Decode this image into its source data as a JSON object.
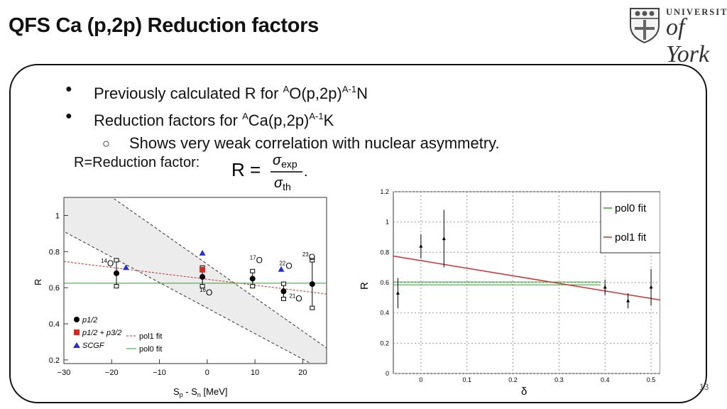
{
  "slide": {
    "title": "QFS Ca (p,2p) Reduction factors",
    "page_number": "13"
  },
  "logo": {
    "line1": "UNIVERSITY",
    "line2": "of York"
  },
  "bullets": [
    {
      "pre": "Previously calculated R for ",
      "sup1": "A",
      "mid": "O(p,2p)",
      "sup2": "A-1",
      "post": "N"
    },
    {
      "pre": "Reduction factors for ",
      "sup1": "A",
      "mid": "Ca(p,2p)",
      "sup2": "A-1",
      "post": "K"
    }
  ],
  "sub_bullet": "Shows very weak correlation with nuclear asymmetry.",
  "r_label": "R=Reduction factor:",
  "formula": {
    "lhs": "R =",
    "num": "σexp",
    "den": "σth"
  },
  "chart_data": [
    {
      "type": "scatter",
      "xlabel": "Sp - Sn [MeV]",
      "ylabel": "R",
      "xlim": [
        -30,
        25
      ],
      "ylim": [
        0.18,
        1.1
      ],
      "xticks": [
        "−30",
        "−20",
        "−10",
        "0",
        "10",
        "20"
      ],
      "yticks": [
        "0.2",
        "0.4",
        "0.6",
        "0.8",
        "1"
      ],
      "legend_left": [
        "p1/2",
        "p1/2 + p3/2",
        "SCGF"
      ],
      "legend_right": [
        "pol1 fit",
        "pol0 fit"
      ],
      "isotopes": [
        {
          "label": "14O",
          "x": -19,
          "y": 0.68
        },
        {
          "label": "16O",
          "x": -1,
          "y": 0.66
        },
        {
          "label": "17O",
          "x": 9.5,
          "y": 0.65
        },
        {
          "label": "22O",
          "x": 16,
          "y": 0.61
        },
        {
          "label": "21O",
          "x": 16,
          "y": 0.58
        },
        {
          "label": "23O",
          "x": 22,
          "y": 0.62
        }
      ],
      "series": [
        {
          "name": "p1/2",
          "x": [
            -19,
            -1,
            9.5,
            16,
            22
          ],
          "y": [
            0.68,
            0.66,
            0.65,
            0.58,
            0.62
          ],
          "err": [
            0.07,
            0.05,
            0.04,
            0.04,
            0.13
          ],
          "color": "#000000"
        },
        {
          "name": "p1/2 + p3/2",
          "x": [
            -1
          ],
          "y": [
            0.7
          ],
          "err": [
            0.02
          ],
          "color": "#d42a20"
        },
        {
          "name": "SCGF",
          "x": [
            -17,
            -1,
            15.5
          ],
          "y": [
            0.71,
            0.79,
            0.7
          ],
          "color": "#2233cc"
        }
      ],
      "fits": {
        "pol1": {
          "y_at_xmin": 0.745,
          "y_at_xmax": 0.565,
          "color": "#c03030"
        },
        "pol0": {
          "y": 0.625,
          "color": "#2ca02c"
        }
      }
    },
    {
      "type": "scatter",
      "xlabel": "δ",
      "ylabel": "R",
      "xlim": [
        -0.06,
        0.52
      ],
      "ylim": [
        0,
        1.2
      ],
      "xticks": [
        "0",
        "0.1",
        "0.2",
        "0.3",
        "0.4",
        "0.5"
      ],
      "yticks": [
        "0",
        "0.2",
        "0.4",
        "0.6",
        "0.8",
        "1",
        "1.2"
      ],
      "legend": [
        "pol0 fit",
        "pol1 fit"
      ],
      "series": [
        {
          "name": "data",
          "x": [
            -0.05,
            0.0,
            0.05,
            0.4,
            0.45,
            0.5
          ],
          "y": [
            0.53,
            0.84,
            0.89,
            0.57,
            0.48,
            0.57
          ],
          "err": [
            0.1,
            0.08,
            0.19,
            0.05,
            0.05,
            0.12
          ]
        }
      ],
      "fits": {
        "pol0": {
          "y": 0.595,
          "color": "#2ca02c"
        },
        "pol1": {
          "y_at_xmin": 0.775,
          "y_at_xmax": 0.485,
          "color": "#d03030"
        }
      }
    }
  ]
}
